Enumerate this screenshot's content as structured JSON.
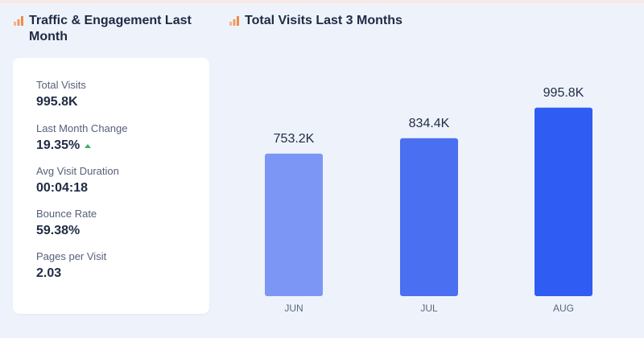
{
  "left_panel": {
    "title": "Traffic & Engagement Last Month",
    "title_icon": "bar-chart-icon",
    "stats": [
      {
        "label": "Total Visits",
        "value": "995.8K"
      },
      {
        "label": "Last Month Change",
        "value": "19.35%",
        "trend": "up"
      },
      {
        "label": "Avg Visit Duration",
        "value": "00:04:18"
      },
      {
        "label": "Bounce Rate",
        "value": "59.38%"
      },
      {
        "label": "Pages per Visit",
        "value": "2.03"
      }
    ]
  },
  "right_panel": {
    "title": "Total Visits Last 3 Months",
    "title_icon": "bar-chart-icon"
  },
  "chart_data": {
    "type": "bar",
    "categories": [
      "JUN",
      "JUL",
      "AUG"
    ],
    "values": [
      753.2,
      834.4,
      995.8
    ],
    "data_labels": [
      "753.2K",
      "834.4K",
      "995.8K"
    ],
    "ylim": [
      0,
      1080
    ],
    "grid": false,
    "colors": [
      "#7b96f4",
      "#4a6ff0",
      "#2f5cf2"
    ]
  },
  "colors": {
    "background": "#eef3fb",
    "card": "#ffffff",
    "icon_orange": "#f08a4b",
    "trend_green": "#3fae6a"
  }
}
